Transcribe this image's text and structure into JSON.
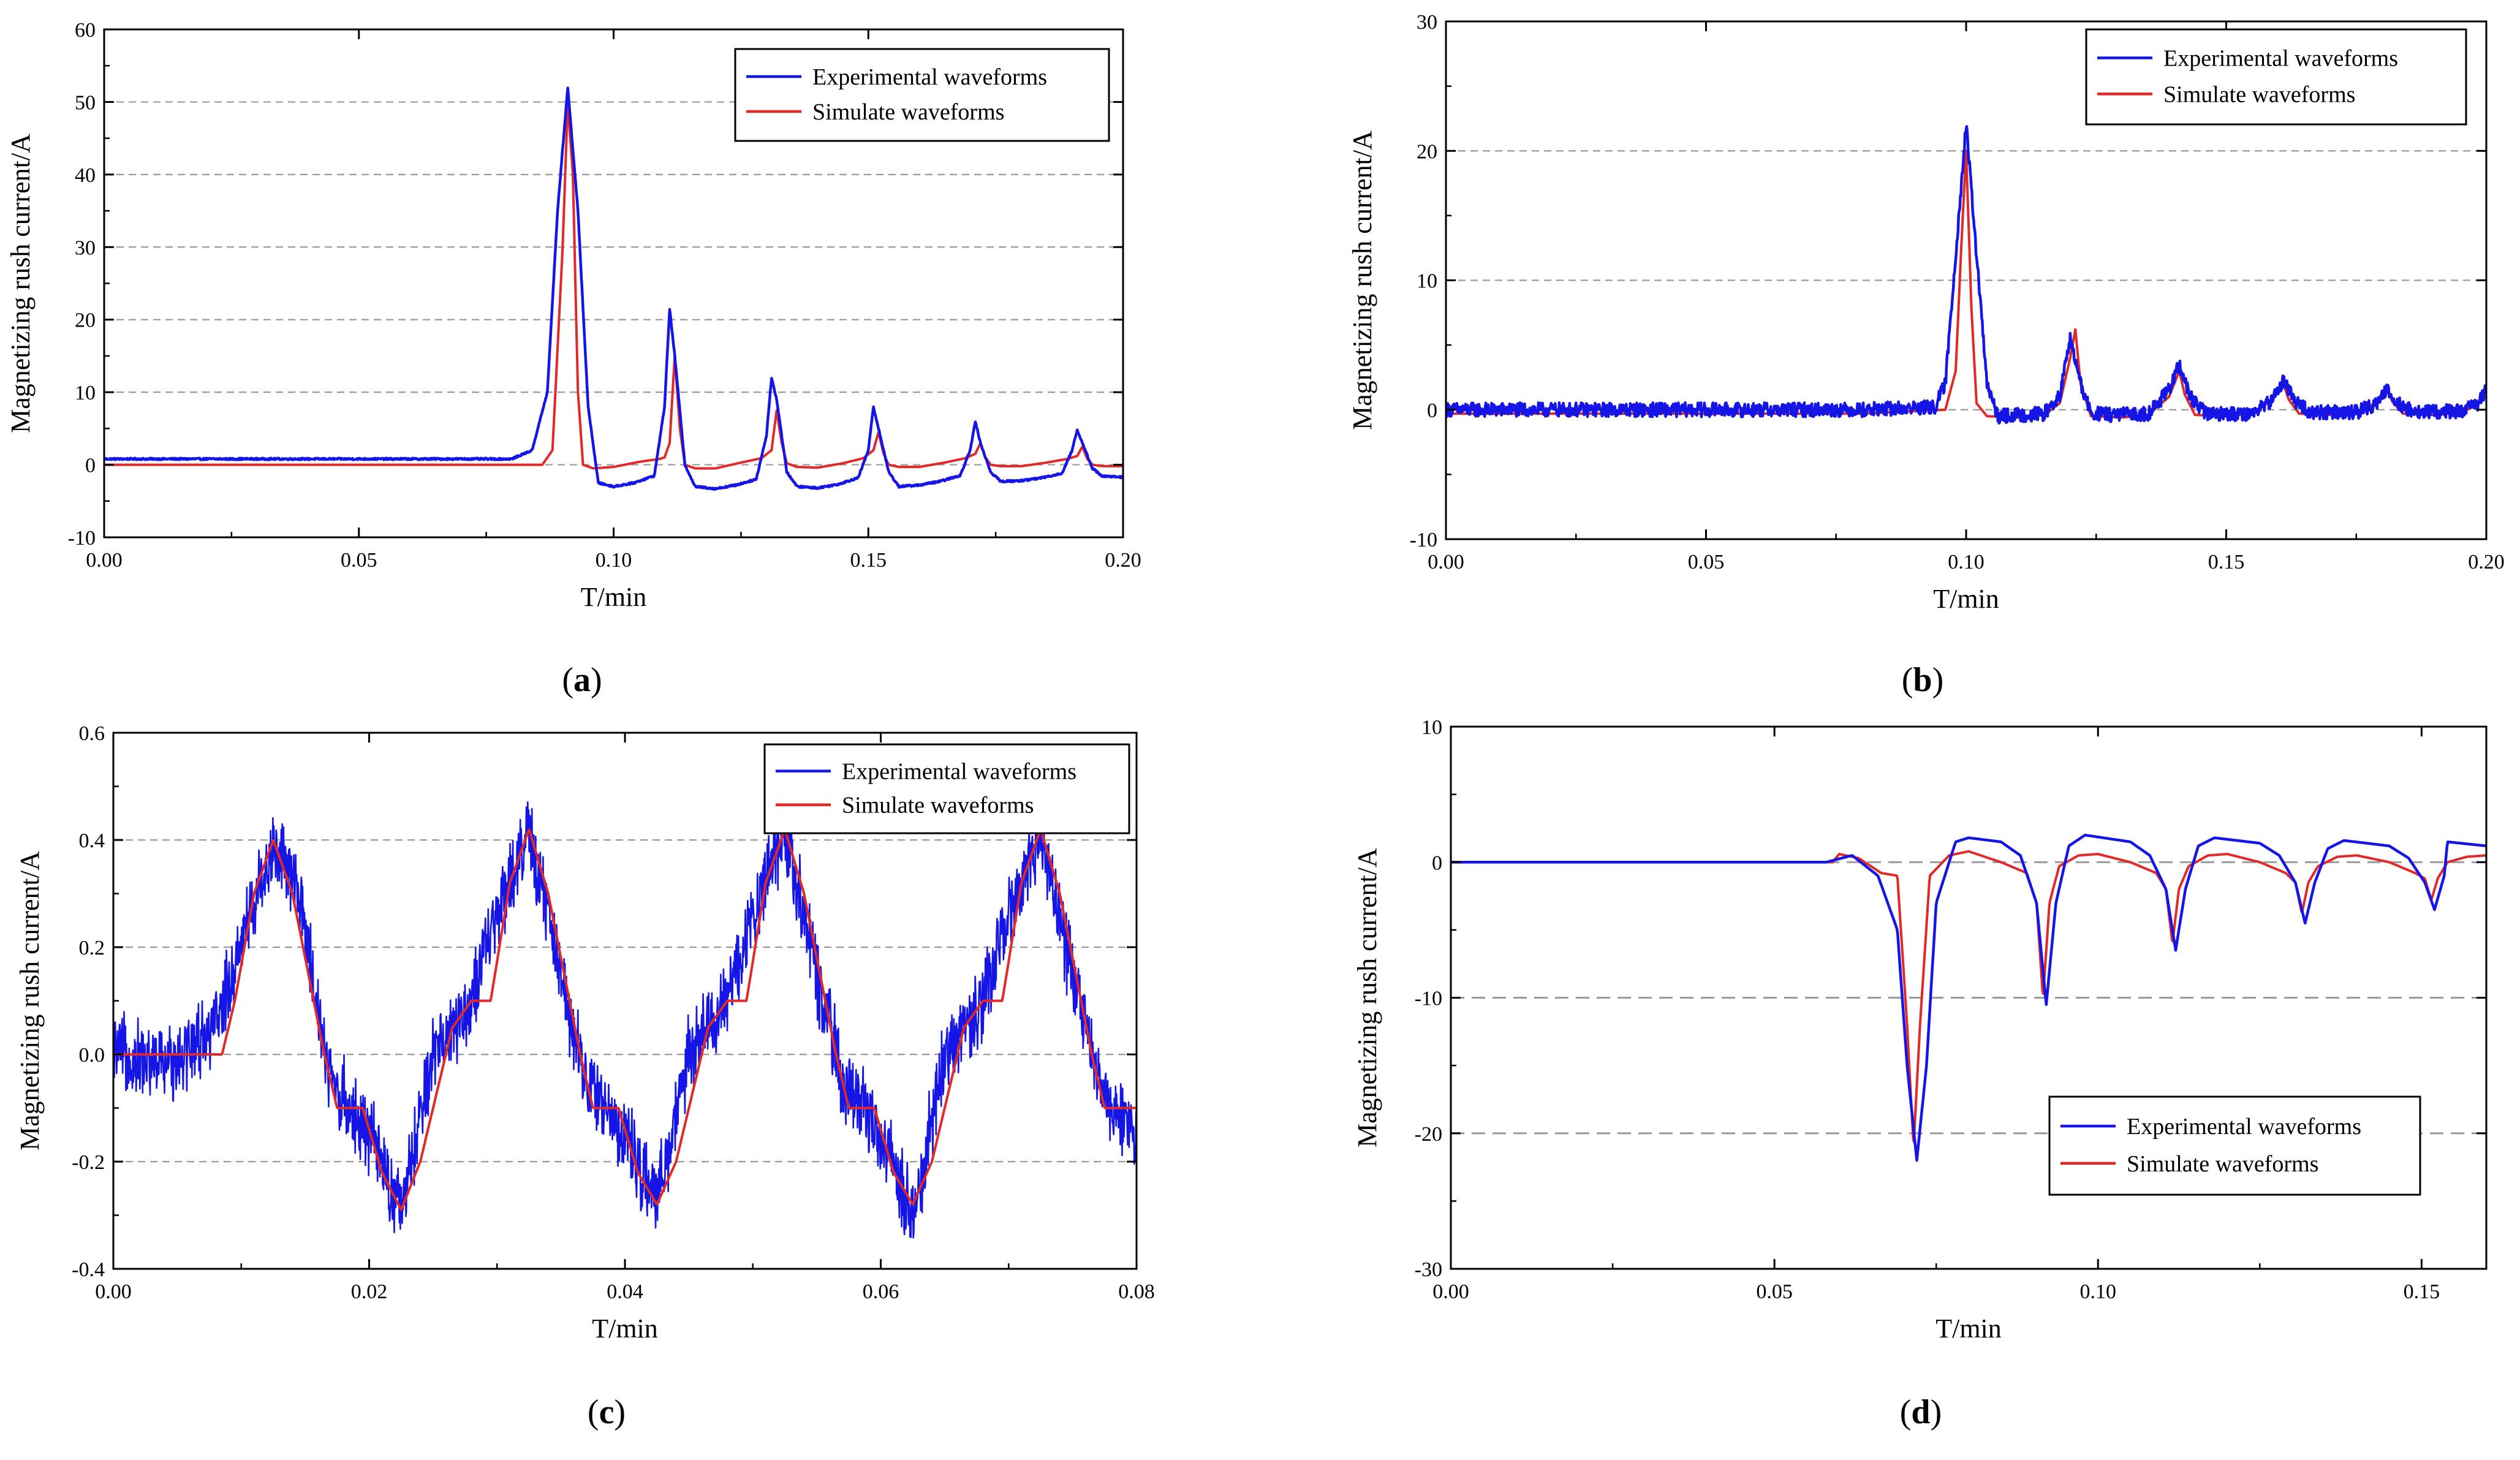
{
  "figure": {
    "colors": {
      "experimental": "#1515e6",
      "simulate": "#e02a2a",
      "grid": "#9a9a9a",
      "axis": "#000000"
    }
  },
  "chart_data": [
    {
      "id": "a",
      "type": "line",
      "caption_letter": "a",
      "xlabel": "T/min",
      "ylabel": "Magnetizing rush current/A",
      "xlim": [
        0,
        0.2
      ],
      "ylim": [
        -10,
        60
      ],
      "xticks": [
        0.0,
        0.05,
        0.1,
        0.15,
        0.2
      ],
      "xtick_labels": [
        "0.00",
        "0.05",
        "0.10",
        "0.15",
        "0.20"
      ],
      "yticks": [
        -10,
        0,
        10,
        20,
        30,
        40,
        50,
        60
      ],
      "ytick_labels": [
        "-10",
        "0",
        "10",
        "20",
        "30",
        "40",
        "50",
        "60"
      ],
      "grid_y": [
        0,
        10,
        20,
        30,
        40,
        50
      ],
      "legend": [
        "Experimental waveforms",
        "Simulate waveforms"
      ],
      "legend_position": "top-right",
      "series": [
        {
          "name": "Experimental waveforms",
          "x": [
            0,
            0.02,
            0.04,
            0.06,
            0.08,
            0.084,
            0.087,
            0.089,
            0.091,
            0.093,
            0.095,
            0.097,
            0.1,
            0.104,
            0.108,
            0.11,
            0.111,
            0.112,
            0.114,
            0.116,
            0.12,
            0.124,
            0.128,
            0.13,
            0.131,
            0.132,
            0.134,
            0.136,
            0.14,
            0.144,
            0.148,
            0.15,
            0.151,
            0.152,
            0.154,
            0.156,
            0.16,
            0.164,
            0.168,
            0.17,
            0.171,
            0.172,
            0.174,
            0.176,
            0.18,
            0.184,
            0.188,
            0.19,
            0.191,
            0.192,
            0.194,
            0.196,
            0.2
          ],
          "values": [
            0.8,
            0.8,
            0.8,
            0.8,
            0.8,
            2,
            10,
            35,
            52,
            35,
            8,
            -2.5,
            -3,
            -2.5,
            -1.5,
            8,
            21.5,
            15,
            0,
            -3,
            -3.3,
            -2.8,
            -2,
            4,
            12,
            9,
            -1,
            -3,
            -3.2,
            -2.7,
            -1.8,
            2,
            8,
            5,
            -1,
            -3,
            -2.8,
            -2.3,
            -1.5,
            2,
            6,
            3,
            -1,
            -2.3,
            -2.2,
            -1.8,
            -1.2,
            2,
            4.8,
            3,
            -0.5,
            -1.6,
            -1.7
          ]
        },
        {
          "name": "Simulate waveforms",
          "x": [
            0,
            0.02,
            0.04,
            0.06,
            0.08,
            0.086,
            0.088,
            0.09,
            0.091,
            0.092,
            0.093,
            0.094,
            0.096,
            0.1,
            0.105,
            0.109,
            0.11,
            0.111,
            0.112,
            0.113,
            0.114,
            0.116,
            0.12,
            0.125,
            0.129,
            0.131,
            0.132,
            0.133,
            0.134,
            0.136,
            0.14,
            0.145,
            0.149,
            0.151,
            0.152,
            0.153,
            0.154,
            0.156,
            0.16,
            0.165,
            0.169,
            0.171,
            0.172,
            0.173,
            0.174,
            0.176,
            0.18,
            0.185,
            0.189,
            0.191,
            0.192,
            0.193,
            0.194,
            0.196,
            0.2
          ],
          "values": [
            0,
            0,
            0,
            0,
            0,
            0,
            2,
            30,
            50,
            40,
            10,
            0,
            -0.5,
            -0.3,
            0.4,
            0.8,
            1,
            3,
            15,
            5,
            0,
            -0.5,
            -0.5,
            0.3,
            0.9,
            2,
            7.5,
            3,
            0.2,
            -0.3,
            -0.4,
            0.2,
            0.9,
            2,
            4.5,
            1.5,
            0,
            -0.3,
            -0.3,
            0.3,
            0.9,
            1.5,
            3,
            1,
            0,
            -0.2,
            -0.2,
            0.3,
            0.8,
            1.2,
            2.5,
            0.8,
            0,
            -0.2,
            -0.2
          ]
        }
      ]
    },
    {
      "id": "b",
      "type": "line",
      "caption_letter": "b",
      "xlabel": "T/min",
      "ylabel": "Magnetizing rush current/A",
      "xlim": [
        0,
        0.2
      ],
      "ylim": [
        -10,
        30
      ],
      "xticks": [
        0.0,
        0.05,
        0.1,
        0.15,
        0.2
      ],
      "xtick_labels": [
        "0.00",
        "0.05",
        "0.10",
        "0.15",
        "0.20"
      ],
      "yticks": [
        -10,
        0,
        10,
        20,
        30
      ],
      "ytick_labels": [
        "-10",
        "0",
        "10",
        "20",
        "30"
      ],
      "grid_y": [
        0,
        10,
        20
      ],
      "legend": [
        "Experimental waveforms",
        "Simulate waveforms"
      ],
      "legend_position": "top-right",
      "series": [
        {
          "name": "Experimental waveforms",
          "x": [
            0,
            0.02,
            0.04,
            0.06,
            0.08,
            0.094,
            0.096,
            0.098,
            0.1,
            0.102,
            0.104,
            0.106,
            0.11,
            0.115,
            0.118,
            0.12,
            0.122,
            0.124,
            0.128,
            0.135,
            0.139,
            0.141,
            0.143,
            0.146,
            0.155,
            0.159,
            0.161,
            0.163,
            0.166,
            0.175,
            0.179,
            0.181,
            0.183,
            0.186,
            0.195,
            0.198,
            0.2
          ],
          "values": [
            0,
            0,
            0,
            0,
            0,
            0.2,
            2,
            12,
            22,
            12,
            2,
            -0.5,
            -0.4,
            -0.3,
            1,
            5.5,
            2,
            -0.3,
            -0.4,
            -0.3,
            1.5,
            3.5,
            1,
            -0.3,
            -0.3,
            0.8,
            2.3,
            0.8,
            -0.2,
            -0.2,
            0.5,
            1.6,
            0.5,
            -0.2,
            -0.1,
            0.3,
            1.5
          ]
        },
        {
          "name": "Simulate waveforms",
          "x": [
            0,
            0.02,
            0.04,
            0.06,
            0.08,
            0.096,
            0.098,
            0.099,
            0.1,
            0.101,
            0.102,
            0.104,
            0.11,
            0.115,
            0.118,
            0.12,
            0.121,
            0.122,
            0.124,
            0.13,
            0.135,
            0.139,
            0.141,
            0.142,
            0.144,
            0.15,
            0.155,
            0.159,
            0.161,
            0.162,
            0.164,
            0.17,
            0.175,
            0.179,
            0.181,
            0.182,
            0.184,
            0.19,
            0.195,
            0.198,
            0.2
          ],
          "values": [
            -0.3,
            -0.3,
            -0.3,
            -0.3,
            -0.3,
            0,
            3,
            12,
            20,
            8,
            0.5,
            -0.5,
            -0.6,
            -0.4,
            0.5,
            4,
            6.2,
            2,
            -0.5,
            -0.6,
            -0.4,
            1,
            3,
            1.2,
            -0.4,
            -0.5,
            -0.3,
            0.8,
            2,
            0.8,
            -0.3,
            -0.4,
            -0.3,
            0.6,
            1.4,
            0.6,
            -0.3,
            -0.4,
            -0.2,
            0.3,
            1
          ]
        }
      ]
    },
    {
      "id": "c",
      "type": "line",
      "caption_letter": "c",
      "xlabel": "T/min",
      "ylabel": "Magnetizing rush current/A",
      "xlim": [
        0,
        0.08
      ],
      "ylim": [
        -0.4,
        0.6
      ],
      "xticks": [
        0.0,
        0.02,
        0.04,
        0.06,
        0.08
      ],
      "xtick_labels": [
        "0.00",
        "0.02",
        "0.04",
        "0.06",
        "0.08"
      ],
      "yticks": [
        -0.4,
        -0.2,
        0.0,
        0.2,
        0.4,
        0.6
      ],
      "ytick_labels": [
        "-0.4",
        "-0.2",
        "0.0",
        "0.2",
        "0.4",
        "0.6"
      ],
      "grid_y": [
        -0.2,
        0.0,
        0.2,
        0.4
      ],
      "legend": [
        "Experimental waveforms",
        "Simulate waveforms"
      ],
      "legend_position": "top-right",
      "series": [
        {
          "name": "Experimental waveforms",
          "x": [
            0,
            0.004,
            0.008,
            0.0105,
            0.0125,
            0.0145,
            0.017,
            0.02,
            0.0225,
            0.025,
            0.028,
            0.0305,
            0.0325,
            0.0345,
            0.037,
            0.04,
            0.0425,
            0.045,
            0.048,
            0.0505,
            0.0525,
            0.0545,
            0.057,
            0.06,
            0.0625,
            0.065,
            0.068,
            0.0705,
            0.0725,
            0.0745,
            0.077,
            0.08
          ],
          "values": [
            0,
            -0.02,
            0.05,
            0.25,
            0.39,
            0.3,
            -0.05,
            -0.15,
            -0.3,
            0.0,
            0.1,
            0.3,
            0.41,
            0.2,
            -0.05,
            -0.15,
            -0.28,
            0.0,
            0.1,
            0.3,
            0.42,
            0.2,
            -0.05,
            -0.15,
            -0.3,
            0.0,
            0.1,
            0.3,
            0.4,
            0.2,
            -0.05,
            -0.15
          ]
        },
        {
          "name": "Simulate waveforms",
          "x": [
            0,
            0.004,
            0.0085,
            0.0095,
            0.011,
            0.0125,
            0.014,
            0.0165,
            0.0175,
            0.0195,
            0.021,
            0.0225,
            0.024,
            0.0265,
            0.028,
            0.0295,
            0.031,
            0.0325,
            0.034,
            0.0365,
            0.0375,
            0.0395,
            0.041,
            0.0425,
            0.044,
            0.0465,
            0.048,
            0.0495,
            0.051,
            0.0525,
            0.054,
            0.0565,
            0.0575,
            0.0595,
            0.061,
            0.0625,
            0.064,
            0.0665,
            0.068,
            0.0695,
            0.071,
            0.0725,
            0.074,
            0.0765,
            0.0775,
            0.079,
            0.08
          ],
          "values": [
            0,
            0,
            0,
            0.1,
            0.3,
            0.4,
            0.3,
            0.0,
            -0.1,
            -0.1,
            -0.22,
            -0.29,
            -0.2,
            0.05,
            0.1,
            0.1,
            0.32,
            0.42,
            0.3,
            0.0,
            -0.1,
            -0.1,
            -0.22,
            -0.28,
            -0.2,
            0.05,
            0.1,
            0.1,
            0.32,
            0.42,
            0.3,
            0.0,
            -0.1,
            -0.1,
            -0.22,
            -0.28,
            -0.2,
            0.05,
            0.1,
            0.1,
            0.32,
            0.42,
            0.3,
            0.0,
            -0.1,
            -0.1,
            -0.1
          ]
        }
      ]
    },
    {
      "id": "d",
      "type": "line",
      "caption_letter": "d",
      "xlabel": "T/min",
      "ylabel": "Magnetizing rush current/A",
      "xlim": [
        0,
        0.16
      ],
      "ylim": [
        -30,
        10
      ],
      "xticks": [
        0.0,
        0.05,
        0.1,
        0.15
      ],
      "xtick_labels": [
        "0.00",
        "0.05",
        "0.10",
        "0.15"
      ],
      "yticks": [
        -30,
        -20,
        -10,
        0,
        10
      ],
      "ytick_labels": [
        "-30",
        "-20",
        "-10",
        "0",
        "10"
      ],
      "grid_y": [
        -20,
        -10,
        0
      ],
      "legend": [
        "Experimental waveforms",
        "Simulate waveforms"
      ],
      "legend_position": "bottom-right",
      "series": [
        {
          "name": "Experimental waveforms",
          "x": [
            0,
            0.02,
            0.04,
            0.058,
            0.062,
            0.066,
            0.069,
            0.0705,
            0.072,
            0.0735,
            0.075,
            0.078,
            0.08,
            0.085,
            0.088,
            0.0905,
            0.092,
            0.0935,
            0.0955,
            0.098,
            0.105,
            0.108,
            0.1105,
            0.112,
            0.1135,
            0.1155,
            0.118,
            0.125,
            0.128,
            0.1305,
            0.132,
            0.1335,
            0.1355,
            0.138,
            0.145,
            0.148,
            0.1505,
            0.152,
            0.1535,
            0.154,
            0.16
          ],
          "values": [
            0,
            0,
            0,
            0,
            0.5,
            -1,
            -5,
            -15,
            -22,
            -15,
            -3,
            1.5,
            1.8,
            1.5,
            0.5,
            -3,
            -10.5,
            -3,
            1.2,
            2,
            1.5,
            0.5,
            -2,
            -6.5,
            -2,
            1.2,
            1.8,
            1.4,
            0.5,
            -1.5,
            -4.5,
            -1.5,
            1.0,
            1.6,
            1.2,
            0.3,
            -1.5,
            -3.5,
            -1.0,
            1.5,
            1.2
          ]
        },
        {
          "name": "Simulate waveforms",
          "x": [
            0,
            0.02,
            0.04,
            0.059,
            0.06,
            0.063,
            0.0665,
            0.069,
            0.0705,
            0.0715,
            0.0725,
            0.074,
            0.077,
            0.08,
            0.085,
            0.089,
            0.0905,
            0.0915,
            0.0925,
            0.094,
            0.097,
            0.1,
            0.105,
            0.109,
            0.1105,
            0.1115,
            0.1125,
            0.114,
            0.117,
            0.12,
            0.125,
            0.129,
            0.1305,
            0.1315,
            0.1325,
            0.134,
            0.137,
            0.14,
            0.145,
            0.149,
            0.1505,
            0.1515,
            0.1525,
            0.154,
            0.157,
            0.16
          ],
          "values": [
            0,
            0,
            0,
            0,
            0.6,
            0.3,
            -0.8,
            -1,
            -12,
            -21,
            -12,
            -1,
            0.5,
            0.8,
            0,
            -0.8,
            -3,
            -10,
            -3,
            -0.3,
            0.5,
            0.6,
            0,
            -0.8,
            -2,
            -6,
            -2,
            -0.3,
            0.5,
            0.6,
            0,
            -0.8,
            -1.5,
            -3.8,
            -1.5,
            -0.3,
            0.4,
            0.5,
            0,
            -0.8,
            -1.2,
            -2.8,
            -1.2,
            0,
            0.4,
            0.5
          ]
        }
      ]
    }
  ]
}
